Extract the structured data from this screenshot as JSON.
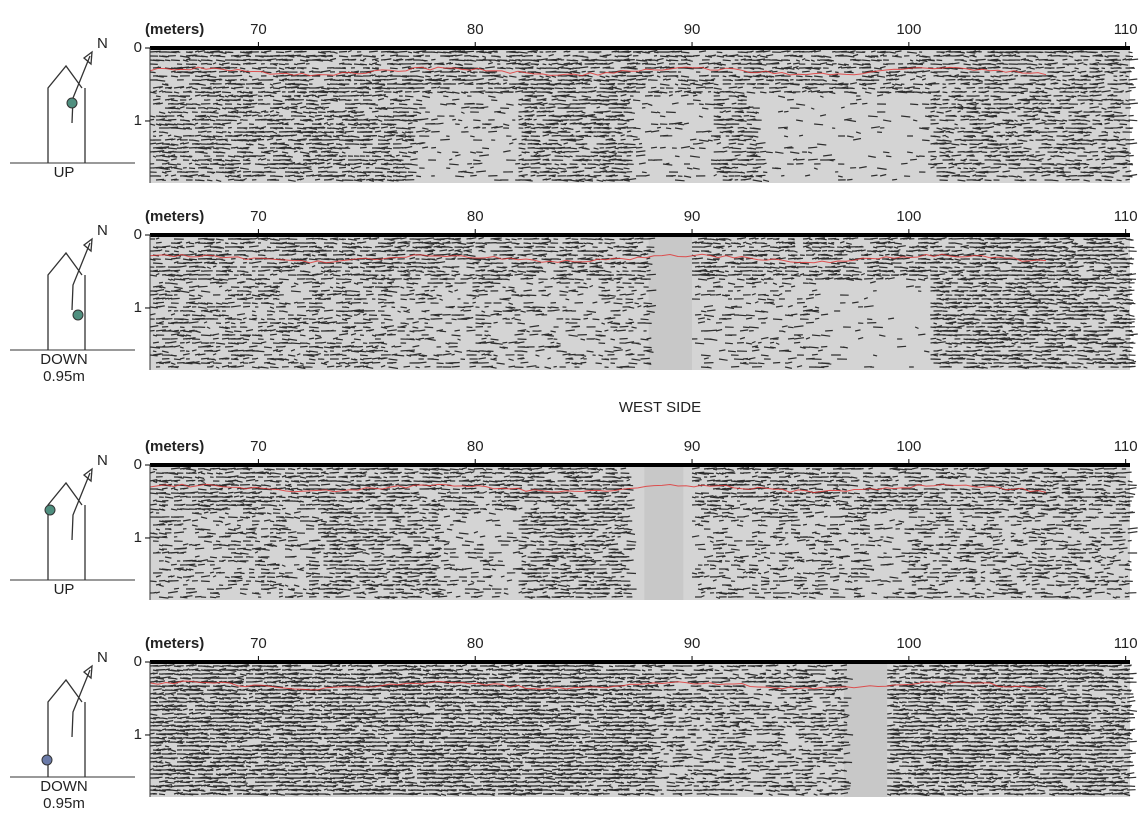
{
  "section_label": "WEST SIDE",
  "panels": [
    {
      "x_axis_label": "(meters)",
      "xticks": [
        70,
        80,
        90,
        100,
        110
      ],
      "xlim": [
        65,
        110.2
      ],
      "yticks": [
        0,
        1
      ],
      "ylim": [
        0,
        1.85
      ],
      "icon": {
        "north": "N",
        "position": "UP"
      }
    },
    {
      "x_axis_label": "(meters)",
      "xticks": [
        70,
        80,
        90,
        100,
        110
      ],
      "xlim": [
        65,
        110.2
      ],
      "yticks": [
        0,
        1
      ],
      "ylim": [
        0,
        1.85
      ],
      "icon": {
        "north": "N",
        "position": "DOWN",
        "height": "0.95m"
      }
    },
    {
      "x_axis_label": "(meters)",
      "xticks": [
        70,
        80,
        90,
        100,
        110
      ],
      "xlim": [
        65,
        110.2
      ],
      "yticks": [
        0,
        1
      ],
      "ylim": [
        0,
        1.85
      ],
      "icon": {
        "north": "N",
        "position": "UP"
      }
    },
    {
      "x_axis_label": "(meters)",
      "xticks": [
        70,
        80,
        90,
        100,
        110
      ],
      "xlim": [
        65,
        110.2
      ],
      "yticks": [
        0,
        1
      ],
      "ylim": [
        0,
        1.85
      ],
      "icon": {
        "north": "N",
        "position": "DOWN",
        "height": "0.95m"
      }
    }
  ]
}
